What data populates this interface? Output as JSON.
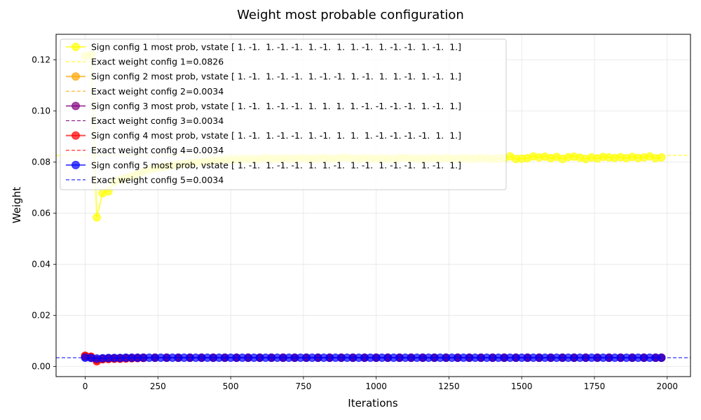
{
  "chart_data": {
    "type": "line",
    "title": "Weight most probable configuration",
    "xlabel": "Iterations",
    "ylabel": "Weight",
    "xlim": [
      -100,
      2080
    ],
    "ylim": [
      -0.004,
      0.13
    ],
    "xticks": [
      0,
      250,
      500,
      750,
      1000,
      1250,
      1500,
      1750,
      2000
    ],
    "yticks": [
      0.0,
      0.02,
      0.04,
      0.06,
      0.08,
      0.1,
      0.12
    ],
    "ytick_labels": [
      "0.00",
      "0.02",
      "0.04",
      "0.06",
      "0.08",
      "0.10",
      "0.12"
    ],
    "grid": true,
    "legend_position": "upper-left",
    "series": [
      {
        "name": "Sign config 1 most prob, vstate [ 1. -1.  1. -1. -1.  1. -1.  1.  1. -1.  1. -1. -1.  1. -1.  1.]",
        "color": "#ffff00",
        "x": [
          0,
          20,
          40,
          60,
          80,
          100,
          120,
          140,
          160,
          180,
          200,
          220,
          240,
          260,
          280,
          300,
          320,
          340,
          360,
          380,
          400,
          420,
          440,
          460,
          480,
          500,
          520,
          540,
          560,
          580,
          600,
          620,
          640,
          660,
          680,
          700,
          720,
          740,
          760,
          780,
          800,
          820,
          840,
          860,
          880,
          900,
          920,
          940,
          960,
          980,
          1000,
          1020,
          1040,
          1060,
          1080,
          1100,
          1120,
          1140,
          1160,
          1180,
          1200,
          1220,
          1240,
          1260,
          1280,
          1300,
          1320,
          1340,
          1360,
          1380,
          1400,
          1420,
          1440,
          1460,
          1480,
          1500,
          1520,
          1540,
          1560,
          1580,
          1600,
          1620,
          1640,
          1660,
          1680,
          1700,
          1720,
          1740,
          1760,
          1780,
          1800,
          1820,
          1840,
          1860,
          1880,
          1900,
          1920,
          1940,
          1960,
          1980
        ],
        "values": [
          0.1215,
          0.122,
          0.0583,
          0.0678,
          0.0685,
          0.0722,
          0.0731,
          0.0738,
          0.0745,
          0.0752,
          0.0762,
          0.077,
          0.0775,
          0.0779,
          0.0783,
          0.0787,
          0.079,
          0.0793,
          0.0796,
          0.0798,
          0.08,
          0.0802,
          0.0804,
          0.0806,
          0.0807,
          0.0808,
          0.0809,
          0.081,
          0.0811,
          0.0811,
          0.0812,
          0.0815,
          0.0812,
          0.0813,
          0.0814,
          0.0813,
          0.0812,
          0.0815,
          0.0813,
          0.0812,
          0.0814,
          0.0816,
          0.0812,
          0.0813,
          0.0817,
          0.0816,
          0.0814,
          0.0812,
          0.0815,
          0.0813,
          0.0812,
          0.0814,
          0.0813,
          0.0812,
          0.0815,
          0.0816,
          0.0814,
          0.0813,
          0.0812,
          0.0814,
          0.0815,
          0.0813,
          0.0816,
          0.0812,
          0.0813,
          0.0815,
          0.0814,
          0.0812,
          0.0816,
          0.0813,
          0.0812,
          0.0814,
          0.0813,
          0.0822,
          0.0812,
          0.0813,
          0.0815,
          0.0822,
          0.0818,
          0.0821,
          0.0815,
          0.082,
          0.0812,
          0.0819,
          0.0821,
          0.0817,
          0.0812,
          0.0818,
          0.0814,
          0.082,
          0.0818,
          0.0816,
          0.0819,
          0.0815,
          0.082,
          0.0816,
          0.0818,
          0.0822,
          0.0815,
          0.0818
        ]
      },
      {
        "name": "Sign config 2 most prob, vstate [ 1. -1.  1. -1. -1.  1. -1. -1.  1. -1.  1.  1. -1.  1. -1.  1.]",
        "color": "#ffa500",
        "x": [
          0,
          20,
          40,
          60,
          80,
          100,
          120,
          140,
          160,
          180,
          200,
          240,
          280,
          320,
          360,
          400,
          440,
          480,
          520,
          560,
          600,
          640,
          680,
          720,
          760,
          800,
          840,
          880,
          920,
          960,
          1000,
          1040,
          1080,
          1120,
          1160,
          1200,
          1240,
          1280,
          1320,
          1360,
          1400,
          1440,
          1480,
          1520,
          1560,
          1600,
          1640,
          1680,
          1720,
          1760,
          1800,
          1840,
          1880,
          1920,
          1960,
          1980
        ],
        "values": [
          0.004,
          0.0036,
          0.0024,
          0.0029,
          0.003,
          0.0031,
          0.0032,
          0.0033,
          0.0033,
          0.0033,
          0.0034,
          0.0034,
          0.0034,
          0.0034,
          0.0034,
          0.0034,
          0.0034,
          0.0034,
          0.0034,
          0.0034,
          0.0034,
          0.0034,
          0.0034,
          0.0034,
          0.0034,
          0.0034,
          0.0034,
          0.0034,
          0.0034,
          0.0034,
          0.0034,
          0.0034,
          0.0034,
          0.0034,
          0.0034,
          0.0034,
          0.0034,
          0.0034,
          0.0034,
          0.0034,
          0.0034,
          0.0034,
          0.0034,
          0.0034,
          0.0034,
          0.0034,
          0.0034,
          0.0034,
          0.0034,
          0.0034,
          0.0034,
          0.0034,
          0.0034,
          0.0034,
          0.0034,
          0.0034
        ]
      },
      {
        "name": "Sign config 3 most prob, vstate [ 1. -1.  1. -1. -1.  1.  1.  1.  1. -1. -1. -1. -1.  1. -1.  1.]",
        "color": "#800080",
        "x": [
          0,
          20,
          40,
          60,
          80,
          100,
          120,
          140,
          160,
          180,
          200,
          240,
          280,
          320,
          360,
          400,
          440,
          480,
          520,
          560,
          600,
          640,
          680,
          720,
          760,
          800,
          840,
          880,
          920,
          960,
          1000,
          1040,
          1080,
          1120,
          1160,
          1200,
          1240,
          1280,
          1320,
          1360,
          1400,
          1440,
          1480,
          1520,
          1560,
          1600,
          1640,
          1680,
          1720,
          1760,
          1800,
          1840,
          1880,
          1920,
          1960,
          1980
        ],
        "values": [
          0.0038,
          0.0035,
          0.0026,
          0.003,
          0.0031,
          0.0032,
          0.0032,
          0.0033,
          0.0033,
          0.0033,
          0.0034,
          0.0034,
          0.0034,
          0.0034,
          0.0034,
          0.0034,
          0.0034,
          0.0034,
          0.0034,
          0.0034,
          0.0034,
          0.0034,
          0.0034,
          0.0034,
          0.0034,
          0.0034,
          0.0034,
          0.0034,
          0.0034,
          0.0034,
          0.0034,
          0.0034,
          0.0034,
          0.0034,
          0.0034,
          0.0034,
          0.0034,
          0.0034,
          0.0034,
          0.0034,
          0.0034,
          0.0034,
          0.0034,
          0.0034,
          0.0034,
          0.0034,
          0.0034,
          0.0034,
          0.0034,
          0.0034,
          0.0034,
          0.0034,
          0.0034,
          0.0034,
          0.0034,
          0.0034
        ]
      },
      {
        "name": "Sign config 4 most prob, vstate [ 1. -1.  1. -1. -1.  1. -1.  1.  1.  1. -1. -1. -1. -1.  1.  1.]",
        "color": "#ff0000",
        "x": [
          0,
          20,
          40,
          60,
          80,
          100,
          120,
          140,
          160,
          180,
          200,
          240,
          280,
          320,
          360,
          400,
          440,
          480,
          520,
          560,
          600,
          640,
          680,
          720,
          760,
          800,
          840,
          880,
          920,
          960,
          1000,
          1040,
          1080,
          1120,
          1160,
          1200,
          1240,
          1280,
          1320,
          1360,
          1400,
          1440,
          1480,
          1520,
          1560,
          1600,
          1640,
          1680,
          1720,
          1760,
          1800,
          1840,
          1880,
          1920,
          1960,
          1980
        ],
        "values": [
          0.0042,
          0.0038,
          0.002,
          0.0028,
          0.0029,
          0.003,
          0.003,
          0.0031,
          0.0032,
          0.0033,
          0.0033,
          0.0034,
          0.0034,
          0.0034,
          0.0034,
          0.0034,
          0.0034,
          0.0034,
          0.0034,
          0.0034,
          0.0034,
          0.0034,
          0.0034,
          0.0034,
          0.0034,
          0.0034,
          0.0034,
          0.0034,
          0.0034,
          0.0034,
          0.0034,
          0.0034,
          0.0034,
          0.0034,
          0.0034,
          0.0034,
          0.0034,
          0.0034,
          0.0034,
          0.0034,
          0.0034,
          0.0034,
          0.0034,
          0.0034,
          0.0034,
          0.0034,
          0.0034,
          0.0034,
          0.0034,
          0.0034,
          0.0034,
          0.0034,
          0.0034,
          0.0034,
          0.0034,
          0.0034
        ]
      },
      {
        "name": "Sign config 5 most prob, vstate [ 1. -1.  1. -1. -1.  1.  1. -1.  1. -1.  1. -1. -1.  1. -1.  1.]",
        "color": "#0000ff",
        "x": [
          0,
          20,
          40,
          60,
          80,
          100,
          120,
          140,
          160,
          180,
          200,
          220,
          240,
          260,
          280,
          300,
          320,
          340,
          360,
          380,
          400,
          420,
          440,
          460,
          480,
          500,
          520,
          540,
          560,
          580,
          600,
          620,
          640,
          660,
          680,
          700,
          720,
          740,
          760,
          780,
          800,
          820,
          840,
          860,
          880,
          900,
          920,
          940,
          960,
          980,
          1000,
          1020,
          1040,
          1060,
          1080,
          1100,
          1120,
          1140,
          1160,
          1180,
          1200,
          1220,
          1240,
          1260,
          1280,
          1300,
          1320,
          1340,
          1360,
          1380,
          1400,
          1420,
          1440,
          1460,
          1480,
          1500,
          1520,
          1540,
          1560,
          1580,
          1600,
          1620,
          1640,
          1660,
          1680,
          1700,
          1720,
          1740,
          1760,
          1780,
          1800,
          1820,
          1840,
          1860,
          1880,
          1900,
          1920,
          1940,
          1960,
          1980
        ],
        "values": [
          0.0034,
          0.0033,
          0.0031,
          0.0032,
          0.0033,
          0.0033,
          0.0033,
          0.0034,
          0.0034,
          0.0034,
          0.0034,
          0.0034,
          0.0034,
          0.0034,
          0.0034,
          0.0034,
          0.0034,
          0.0034,
          0.0034,
          0.0034,
          0.0034,
          0.0034,
          0.0034,
          0.0034,
          0.0034,
          0.0034,
          0.0034,
          0.0034,
          0.0034,
          0.0034,
          0.0034,
          0.0034,
          0.0034,
          0.0034,
          0.0034,
          0.0034,
          0.0034,
          0.0034,
          0.0034,
          0.0034,
          0.0034,
          0.0034,
          0.0034,
          0.0034,
          0.0034,
          0.0034,
          0.0034,
          0.0034,
          0.0034,
          0.0034,
          0.0034,
          0.0034,
          0.0034,
          0.0034,
          0.0034,
          0.0034,
          0.0034,
          0.0034,
          0.0034,
          0.0034,
          0.0034,
          0.0034,
          0.0034,
          0.0034,
          0.0034,
          0.0034,
          0.0034,
          0.0034,
          0.0034,
          0.0034,
          0.0034,
          0.0034,
          0.0034,
          0.0034,
          0.0034,
          0.0034,
          0.0034,
          0.0034,
          0.0034,
          0.0034,
          0.0034,
          0.0034,
          0.0034,
          0.0034,
          0.0034,
          0.0034,
          0.0034,
          0.0034,
          0.0034,
          0.0034,
          0.0034,
          0.0034,
          0.0034,
          0.0034,
          0.0034,
          0.0034,
          0.0034,
          0.0034,
          0.0034,
          0.0034
        ]
      }
    ],
    "reference_lines": [
      {
        "name": "Exact weight config 1=0.0826",
        "color": "#ffff00",
        "value": 0.0826
      },
      {
        "name": "Exact weight config 2=0.0034",
        "color": "#ffa500",
        "value": 0.0034
      },
      {
        "name": "Exact weight config 3=0.0034",
        "color": "#800080",
        "value": 0.0034
      },
      {
        "name": "Exact weight config 4=0.0034",
        "color": "#ff0000",
        "value": 0.0034
      },
      {
        "name": "Exact weight config 5=0.0034",
        "color": "#0000ff",
        "value": 0.0034
      }
    ]
  }
}
